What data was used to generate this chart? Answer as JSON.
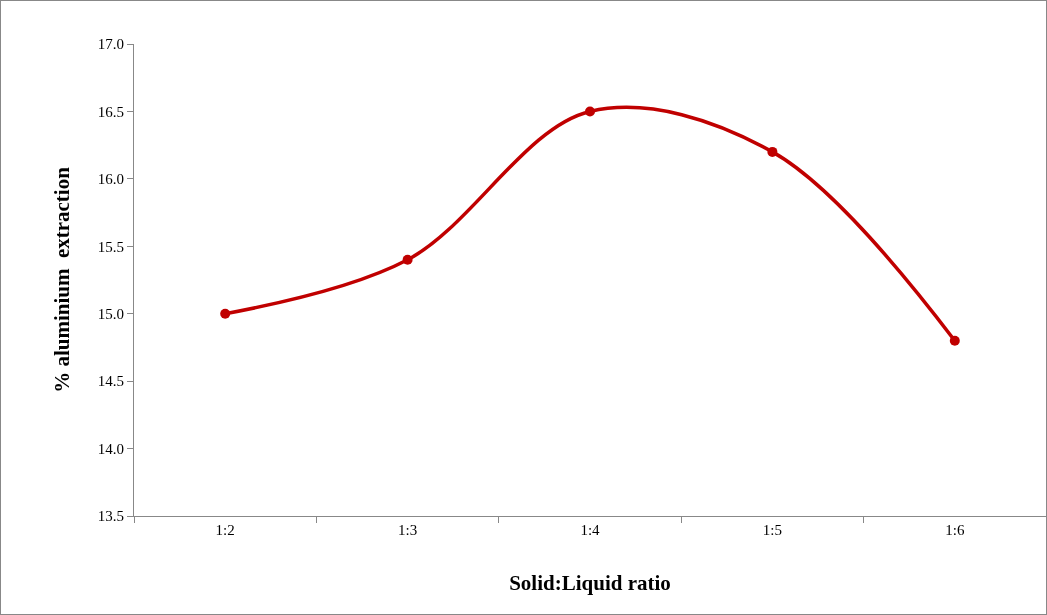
{
  "chart_data": {
    "type": "line",
    "xlabel": "Solid:Liquid ratio",
    "ylabel": "% aluminium  extraction",
    "categories": [
      "1:2",
      "1:3",
      "1:4",
      "1:5",
      "1:6"
    ],
    "series": [
      {
        "color": "#c00000",
        "values": [
          15.0,
          15.4,
          16.5,
          16.2,
          14.8
        ]
      }
    ],
    "ylim": [
      13.5,
      17.0
    ],
    "yticks": [
      13.5,
      {
        "value": 14,
        "label": "14.0"
      },
      14.5,
      {
        "value": 15,
        "label": "15.0"
      },
      15.5,
      {
        "value": 16,
        "label": "16.0"
      },
      16.5,
      {
        "value": 17,
        "label": "17.0"
      }
    ],
    "grid": false,
    "marker": "circle",
    "line_style": "solid"
  }
}
